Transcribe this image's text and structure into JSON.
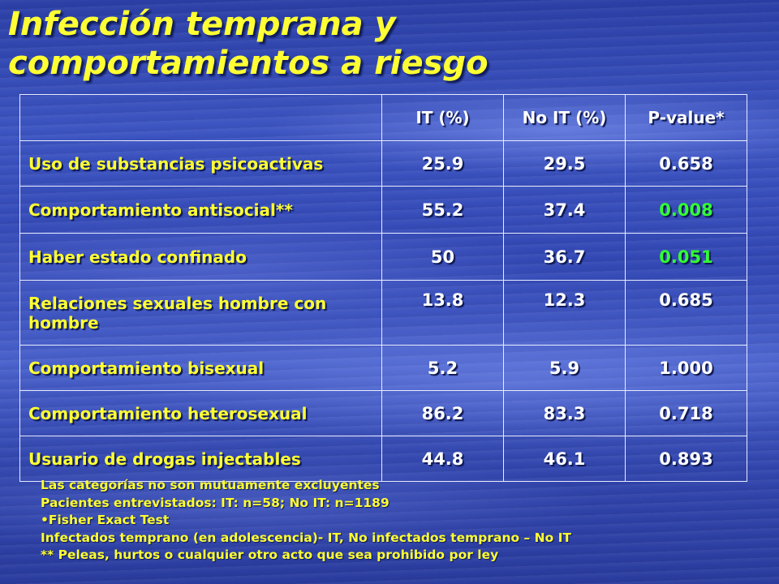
{
  "title": {
    "line1": "Infección temprana y",
    "line2": "comportamientos a riesgo"
  },
  "table": {
    "headers": [
      "",
      "IT (%)",
      "No IT (%)",
      "P-value*"
    ],
    "rows": [
      {
        "label": "Uso de substancias psicoactivas",
        "it": "25.9",
        "noit": "29.5",
        "p": "0.658",
        "significant": false
      },
      {
        "label": "Comportamiento antisocial**",
        "it": "55.2",
        "noit": "37.4",
        "p": "0.008",
        "significant": true
      },
      {
        "label": "Haber estado confinado",
        "it": "50",
        "noit": "36.7",
        "p": "0.051",
        "significant": true
      },
      {
        "label": "Relaciones sexuales hombre con hombre",
        "it": "13.8",
        "noit": "12.3",
        "p": "0.685",
        "significant": false
      },
      {
        "label": "Comportamiento bisexual",
        "it": "5.2",
        "noit": "5.9",
        "p": "1.000",
        "significant": false
      },
      {
        "label": "Comportamiento heterosexual",
        "it": "86.2",
        "noit": "83.3",
        "p": "0.718",
        "significant": false
      },
      {
        "label": "Usuario de drogas injectables",
        "it": "44.8",
        "noit": "46.1",
        "p": "0.893",
        "significant": false
      }
    ]
  },
  "notes": [
    "Las categorías no son mutuamente excluyentes",
    "Pacientes entrevistados: IT: n=58; No IT: n=1189",
    "•Fisher Exact Test",
    "Infectados temprano (en adolescencia)- IT, No infectados temprano – No IT",
    "** Peleas, hurtos o cualquier otro acto que sea prohibido  por ley"
  ],
  "colors": {
    "title": "#ffff33",
    "row_label": "#ffff33",
    "values": "#ffffff",
    "significant_p": "#33ff33",
    "background": "#3a52bf"
  }
}
